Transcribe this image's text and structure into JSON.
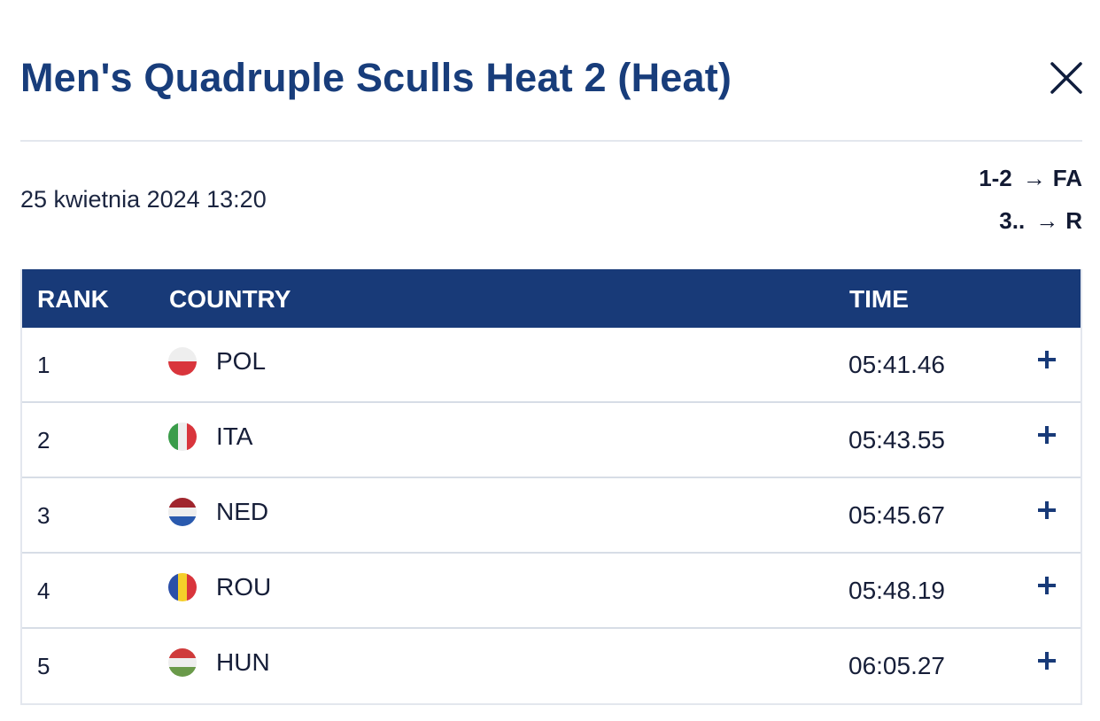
{
  "title": "Men's Quadruple Sculls Heat 2 (Heat)",
  "close_icon": "close-icon",
  "date": "25 kwietnia 2024 13:20",
  "progression": [
    {
      "places": "1-2",
      "arrow": "→",
      "target": "FA"
    },
    {
      "places": "3..",
      "arrow": "→",
      "target": "R"
    }
  ],
  "table": {
    "headers": {
      "rank": "RANK",
      "country": "COUNTRY",
      "time": "TIME"
    },
    "rows": [
      {
        "rank": "1",
        "country": "POL",
        "time": "05:41.46",
        "flag": "poland-flag-icon"
      },
      {
        "rank": "2",
        "country": "ITA",
        "time": "05:43.55",
        "flag": "italy-flag-icon"
      },
      {
        "rank": "3",
        "country": "NED",
        "time": "05:45.67",
        "flag": "netherlands-flag-icon"
      },
      {
        "rank": "4",
        "country": "ROU",
        "time": "05:48.19",
        "flag": "romania-flag-icon"
      },
      {
        "rank": "5",
        "country": "HUN",
        "time": "06:05.27",
        "flag": "hungary-flag-icon"
      }
    ]
  },
  "colors": {
    "title": "#183d7b",
    "header_bg": "#183a78",
    "text": "#161e38"
  }
}
